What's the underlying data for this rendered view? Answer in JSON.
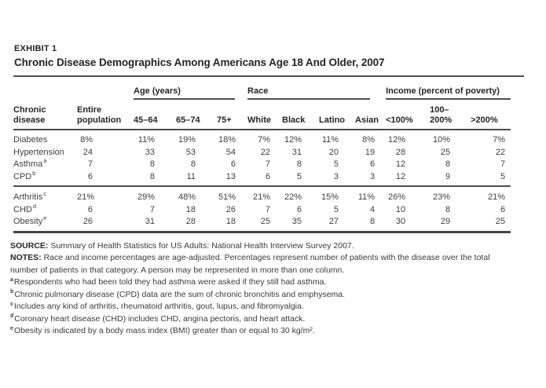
{
  "exhibit": {
    "label": "EXHIBIT 1",
    "title": "Chronic Disease Demographics Among Americans Age 18 And Older, 2007"
  },
  "table": {
    "col_groups": [
      {
        "label": "Age (years)",
        "span": 3
      },
      {
        "label": "Race",
        "span": 4
      },
      {
        "label": "Income (percent of poverty)",
        "span": 3
      }
    ],
    "columns": [
      "Chronic\ndisease",
      "Entire\npopulation",
      "45–64",
      "65–74",
      "75+",
      "White",
      "Black",
      "Latino",
      "Asian",
      "<100%",
      "100–\n200%",
      ">200%"
    ],
    "groups": [
      {
        "rows": [
          {
            "disease": "Diabetes",
            "sup": "",
            "values": [
              "8%",
              "11%",
              "19%",
              "18%",
              "7%",
              "12%",
              "11%",
              "8%",
              "12%",
              "10%",
              "7%"
            ]
          },
          {
            "disease": "Hypertension",
            "sup": "",
            "values": [
              "24",
              "33",
              "53",
              "54",
              "22",
              "31",
              "20",
              "19",
              "28",
              "25",
              "22"
            ]
          },
          {
            "disease": "Asthma",
            "sup": "a",
            "values": [
              "7",
              "8",
              "8",
              "6",
              "7",
              "8",
              "5",
              "6",
              "12",
              "8",
              "7"
            ]
          },
          {
            "disease": "CPD",
            "sup": "b",
            "values": [
              "6",
              "8",
              "11",
              "13",
              "6",
              "5",
              "3",
              "3",
              "12",
              "9",
              "5"
            ]
          }
        ]
      },
      {
        "rows": [
          {
            "disease": "Arthritis",
            "sup": "c",
            "values": [
              "21%",
              "29%",
              "48%",
              "51%",
              "21%",
              "22%",
              "15%",
              "11%",
              "26%",
              "23%",
              "21%"
            ]
          },
          {
            "disease": "CHD",
            "sup": "d",
            "values": [
              "6",
              "7",
              "18",
              "26",
              "7",
              "6",
              "5",
              "4",
              "10",
              "8",
              "6"
            ]
          },
          {
            "disease": "Obesity",
            "sup": "e",
            "values": [
              "26",
              "31",
              "28",
              "18",
              "25",
              "35",
              "27",
              "8",
              "30",
              "29",
              "25"
            ]
          }
        ]
      }
    ]
  },
  "notes": {
    "source_label": "SOURCE:",
    "source_text": "Summary of Health Statistics for US Adults: National Health Interview Survey 2007.",
    "notes_label": "NOTES:",
    "notes_text": "Race and income percentages are age-adjusted. Percentages represent number of patients with the disease over the total number of patients in that category. A person may be represented in more than one column.",
    "footnotes": [
      {
        "marker": "a",
        "text": "Respondents who had been told they had asthma were asked if they still had asthma."
      },
      {
        "marker": "b",
        "text": "Chronic pulmonary disease (CPD) data are the sum of chronic bronchitis and emphysema."
      },
      {
        "marker": "c",
        "text": "Includes any kind of arthritis, rheumatoid arthritis, gout, lupus, and fibromyalgia."
      },
      {
        "marker": "d",
        "text": "Coronary heart disease (CHD) includes CHD, angina pectoris, and heart attack."
      },
      {
        "marker": "e",
        "text": "Obesity is indicated by a body mass index (BMI) greater than or equal to 30 kg/m²."
      }
    ]
  },
  "colors": {
    "text": "#3a3a3a",
    "heading": "#252525",
    "rule": "#4d4d4d",
    "background": "#ffffff"
  }
}
